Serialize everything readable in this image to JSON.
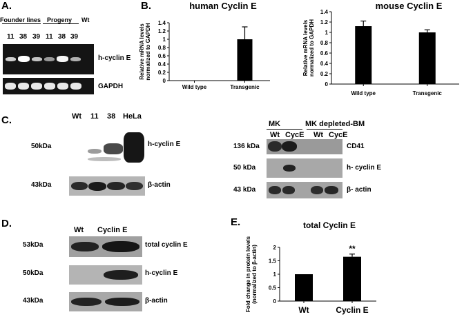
{
  "panels": {
    "A": {
      "letter": "A.",
      "header_founder": "Founder lines",
      "header_progeny": "Progeny",
      "header_wt": "Wt",
      "lanes": [
        "11",
        "38",
        "39",
        "11",
        "38",
        "39"
      ],
      "label_top": "h-cyclin E",
      "label_bottom": "GAPDH"
    },
    "B": {
      "letter": "B.",
      "charts": [
        {
          "title": "human Cyclin E",
          "ylabel": "Relative mRNA levels normalized to GAPDH",
          "ticks": [
            "0",
            "0.2",
            "0.4",
            "0.6",
            "0.8",
            "1",
            "1.2",
            "1.4"
          ]
        },
        {
          "title": "mouse Cyclin E",
          "ylabel": "Relative mRNA levels normalized to GAPDH",
          "ticks": [
            "0",
            "0.2",
            "0.4",
            "0.6",
            "0.8",
            "1",
            "1.2",
            "1.4"
          ]
        }
      ]
    },
    "C": {
      "letter": "C.",
      "left": {
        "lanes": [
          "Wt",
          "11",
          "38",
          "HeLa"
        ],
        "mw_top": "50kDa",
        "mw_bottom": "43kDa",
        "label_top": "h-cyclin E",
        "label_bottom": "β-actin"
      },
      "right": {
        "group_mk": "MK",
        "group_depleted": "MK depleted-BM",
        "lanes": [
          "Wt",
          "CycE",
          "Wt",
          "CycE"
        ],
        "mw": [
          "136 kDa",
          "50 kDa",
          "43 kDa"
        ],
        "labels": [
          "CD41",
          "h- cyclin E",
          "β- actin"
        ]
      }
    },
    "D": {
      "letter": "D.",
      "lanes": [
        "Wt",
        "Cyclin E"
      ],
      "mw": [
        "53kDa",
        "50kDa",
        "43kDa"
      ],
      "labels": [
        "total cyclin E",
        "h-cyclin E",
        "β-actin"
      ]
    },
    "E": {
      "letter": "E.",
      "title": "total Cyclin E",
      "ylabel": "Fold change in protein levels (normalized to β-actin)",
      "ticks": [
        "0",
        "0.5",
        "1",
        "1.5",
        "2"
      ],
      "significance": "**"
    }
  },
  "chart_data": [
    {
      "type": "bar",
      "title": "human Cyclin E",
      "categories": [
        "Wild type",
        "Transgenic"
      ],
      "values": [
        0,
        1.0
      ],
      "errors": [
        0,
        0.3
      ],
      "ylabel": "Relative mRNA levels normalized to GAPDH",
      "ylim": [
        0,
        1.4
      ]
    },
    {
      "type": "bar",
      "title": "mouse Cyclin E",
      "categories": [
        "Wild type",
        "Transgenic"
      ],
      "values": [
        1.12,
        1.0
      ],
      "errors": [
        0.1,
        0.05
      ],
      "ylabel": "Relative mRNA levels normalized to GAPDH",
      "ylim": [
        0,
        1.4
      ]
    },
    {
      "type": "bar",
      "title": "total Cyclin E",
      "categories": [
        "Wt",
        "Cyclin E"
      ],
      "values": [
        1.0,
        1.65
      ],
      "errors": [
        0,
        0.1
      ],
      "ylabel": "Fold change in protein levels (normalized to β-actin)",
      "ylim": [
        0,
        2
      ],
      "annotations": [
        "**"
      ]
    }
  ]
}
